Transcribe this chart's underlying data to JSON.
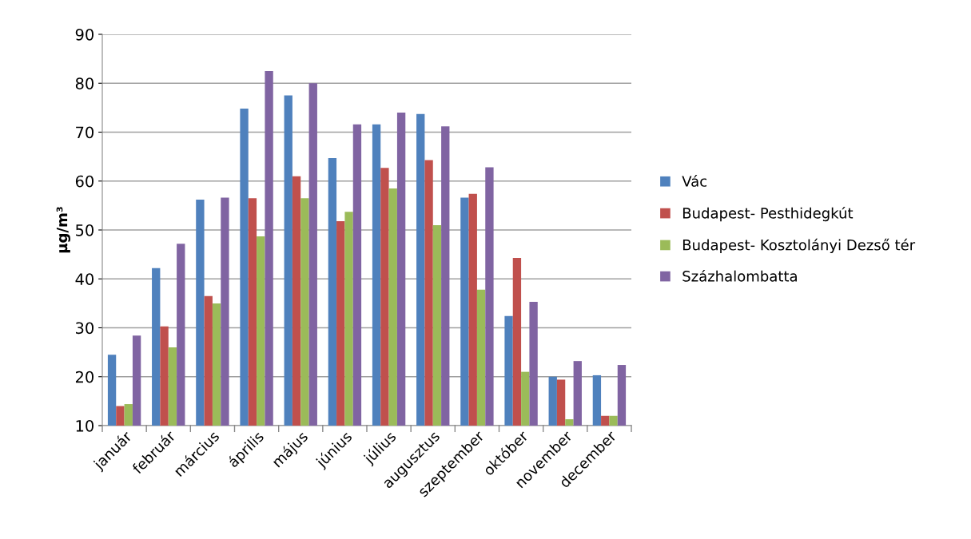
{
  "chart_data": {
    "type": "bar",
    "ylabel": "µg/m³",
    "categories": [
      "január",
      "február",
      "március",
      "április",
      "május",
      "június",
      "július",
      "augusztus",
      "szeptember",
      "október",
      "november",
      "december"
    ],
    "series": [
      {
        "name": "Vác",
        "color": "#4f81bd",
        "values": [
          24.5,
          42.2,
          56.2,
          74.8,
          77.5,
          64.7,
          71.6,
          73.7,
          56.6,
          32.4,
          20.0,
          20.3
        ]
      },
      {
        "name": "Budapest- Pesthidegkút",
        "color": "#c0504d",
        "values": [
          14.0,
          30.3,
          36.5,
          56.5,
          61.0,
          51.8,
          62.7,
          64.3,
          57.4,
          44.3,
          19.4,
          12.0
        ]
      },
      {
        "name": "Budapest- Kosztolányi Dezső tér",
        "color": "#9bbb59",
        "values": [
          14.4,
          26.0,
          35.0,
          48.7,
          56.5,
          53.7,
          58.5,
          51.0,
          37.8,
          21.0,
          11.3,
          12.0
        ]
      },
      {
        "name": "Százhalombatta",
        "color": "#8064a2",
        "values": [
          28.4,
          47.2,
          56.6,
          82.5,
          80.0,
          71.6,
          74.0,
          71.2,
          62.8,
          35.3,
          23.2,
          22.4
        ]
      }
    ],
    "ylim": [
      10,
      90
    ],
    "yticks": [
      10,
      20,
      30,
      40,
      50,
      60,
      70,
      80,
      90
    ],
    "grid": "y",
    "legend": "right"
  }
}
